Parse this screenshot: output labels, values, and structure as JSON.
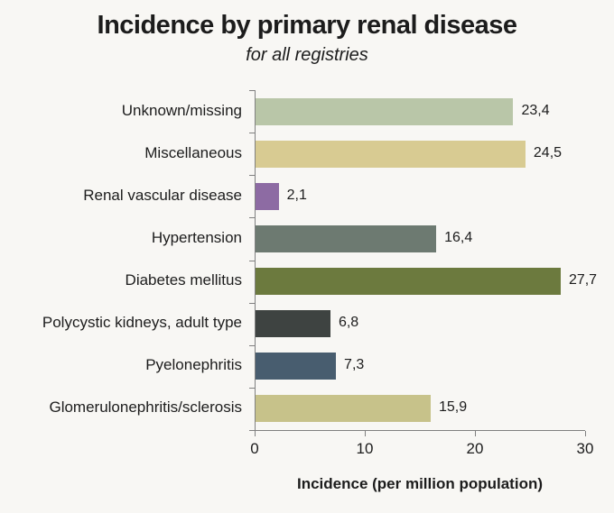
{
  "chart_data": {
    "type": "bar",
    "orientation": "horizontal",
    "title": "Incidence by primary renal disease",
    "subtitle": "for all registries",
    "xlabel": "Incidence (per million population)",
    "categories": [
      "Unknown/missing",
      "Miscellaneous",
      "Renal vascular disease",
      "Hypertension",
      "Diabetes mellitus",
      "Polycystic kidneys, adult type",
      "Pyelonephritis",
      "Glomerulonephritis/sclerosis"
    ],
    "values": [
      23.4,
      24.5,
      2.1,
      16.4,
      27.7,
      6.8,
      7.3,
      15.9
    ],
    "value_labels": [
      "23,4",
      "24,5",
      "2,1",
      "16,4",
      "27,7",
      "6,8",
      "7,3",
      "15,9"
    ],
    "bar_colors": [
      "#b9c6a8",
      "#d8cb92",
      "#8d6ba3",
      "#6d7a71",
      "#6c7a3e",
      "#3e4341",
      "#485d6f",
      "#c7c28a"
    ],
    "xlim": [
      0,
      30
    ],
    "xticks": [
      0,
      10,
      20,
      30
    ],
    "xtick_labels": [
      "0",
      "10",
      "20",
      "30"
    ],
    "decimal_separator": ",",
    "grid": false,
    "legend": false
  },
  "colors": {
    "background": "#f8f7f4",
    "axis": "#808080",
    "text": "#1c1c1c"
  }
}
